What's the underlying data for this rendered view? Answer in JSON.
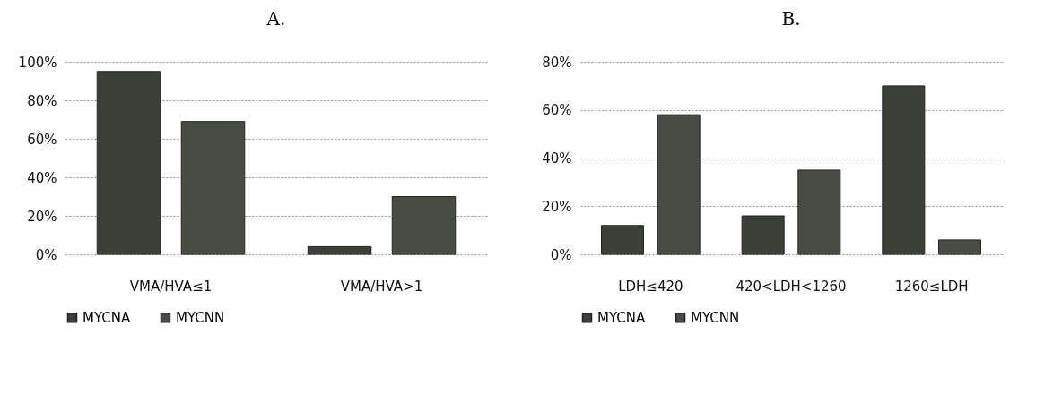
{
  "chart_data": [
    {
      "type": "bar",
      "title": "A.",
      "categories": [
        "VMA/HVA≤1",
        "VMA/HVA>1"
      ],
      "series": [
        {
          "name": "MYCNA",
          "color": "#3a3f38",
          "values": [
            95,
            4
          ]
        },
        {
          "name": "MYCNN",
          "color": "#474c45",
          "values": [
            69,
            30
          ]
        }
      ],
      "ylim": [
        0,
        100
      ],
      "yticks": [
        {
          "value": 0,
          "label": "0%"
        },
        {
          "value": 20,
          "label": "20%"
        },
        {
          "value": 40,
          "label": "40%"
        },
        {
          "value": 60,
          "label": "60%"
        },
        {
          "value": 80,
          "label": "80%"
        },
        {
          "value": 100,
          "label": "100%"
        }
      ],
      "grid": "y",
      "legend": "bottom"
    },
    {
      "type": "bar",
      "title": "B.",
      "categories": [
        "LDH≤420",
        "420<LDH<1260",
        "1260≤LDH"
      ],
      "series": [
        {
          "name": "MYCNA",
          "color": "#3a3f38",
          "values": [
            12,
            16,
            70
          ]
        },
        {
          "name": "MYCNN",
          "color": "#474c45",
          "values": [
            58,
            35,
            6
          ]
        }
      ],
      "ylim": [
        0,
        80
      ],
      "yticks": [
        {
          "value": 0,
          "label": "0%"
        },
        {
          "value": 20,
          "label": "20%"
        },
        {
          "value": 40,
          "label": "40%"
        },
        {
          "value": 60,
          "label": "60%"
        },
        {
          "value": 80,
          "label": "80%"
        }
      ],
      "grid": "y",
      "legend": "bottom"
    }
  ]
}
